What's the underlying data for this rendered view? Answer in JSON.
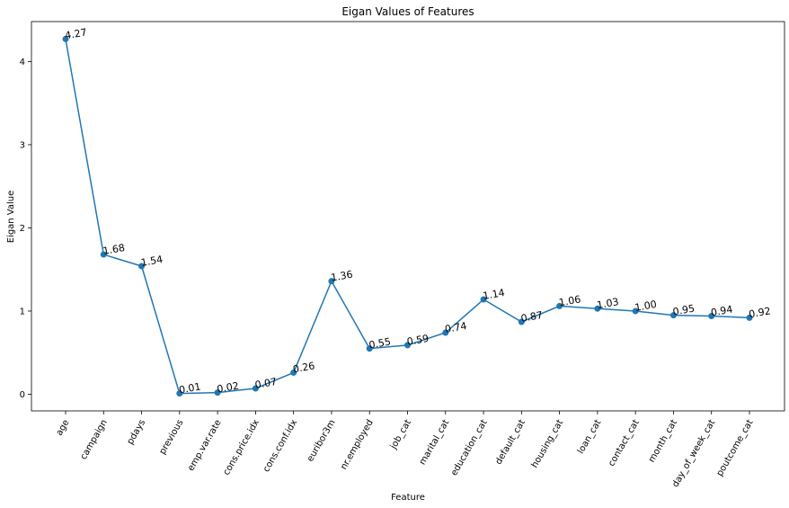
{
  "chart_data": {
    "type": "line",
    "title": "Eigan Values of Features",
    "xlabel": "Feature",
    "ylabel": "Eigan Value",
    "categories": [
      "age",
      "campaign",
      "pdays",
      "previous",
      "emp.var.rate",
      "cons.price.idx",
      "cons.conf.idx",
      "euribor3m",
      "nr.employed",
      "job_cat",
      "marital_cat",
      "education_cat",
      "default_cat",
      "housing_cat",
      "loan_cat",
      "contact_cat",
      "month_cat",
      "day_of_week_cat",
      "poutcome_cat"
    ],
    "series": [
      {
        "values": [
          4.27,
          1.68,
          1.54,
          0.01,
          0.02,
          0.07,
          0.26,
          1.36,
          0.55,
          0.59,
          0.74,
          1.14,
          0.87,
          1.06,
          1.03,
          1.0,
          0.95,
          0.94,
          0.92
        ],
        "color": "#1f77b4"
      }
    ],
    "data_labels": [
      "4.27",
      "1.68",
      "1.54",
      "0.01",
      "0.02",
      "0.07",
      "0.26",
      "1.36",
      "0.55",
      "0.59",
      "0.74",
      "1.14",
      "0.87",
      "1.06",
      "1.03",
      "1.00",
      "0.95",
      "0.94",
      "0.92"
    ],
    "yticks": [
      0,
      1,
      2,
      3,
      4
    ],
    "ylim": [
      -0.2,
      4.48
    ],
    "grid": false,
    "legend": "none"
  }
}
